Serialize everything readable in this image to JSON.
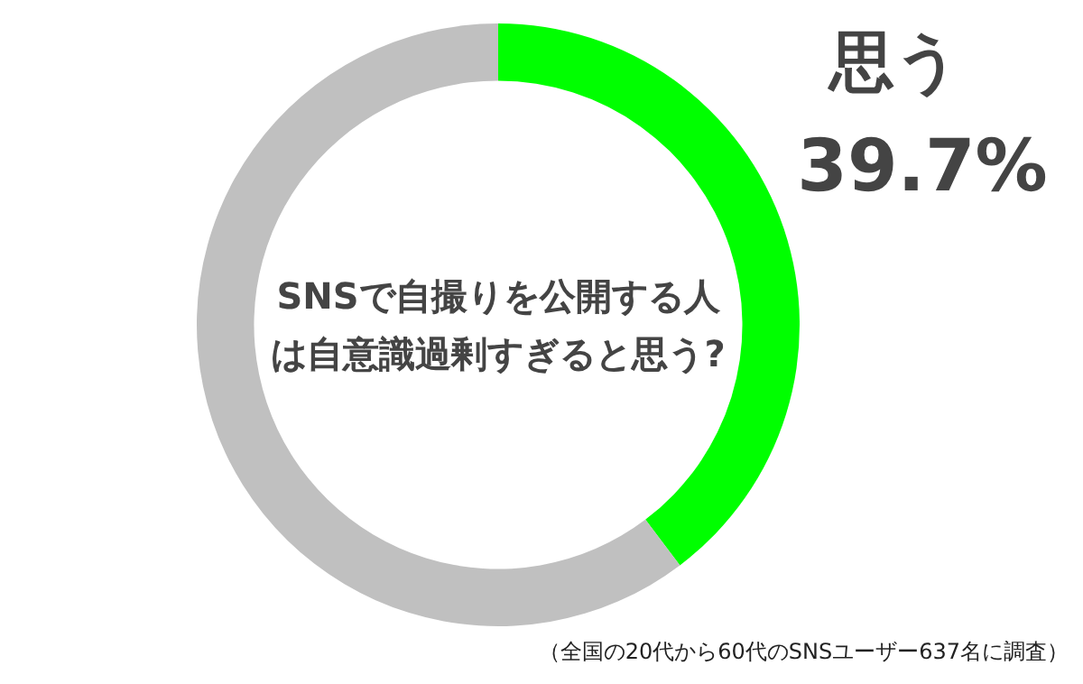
{
  "chart_data": {
    "type": "donut",
    "title": "SNSで自撮りを公開する人は自意識過剰すぎると思う?",
    "categories": [
      "思う",
      null
    ],
    "values": [
      39.7,
      60.3
    ],
    "colors": [
      "#00ff00",
      "#c0c0c0"
    ],
    "value_labels": [
      "39.7%",
      null
    ],
    "annotations": [
      "（全国の20代から60代のSNSユーザー637名に調査）"
    ],
    "legend": false
  }
}
